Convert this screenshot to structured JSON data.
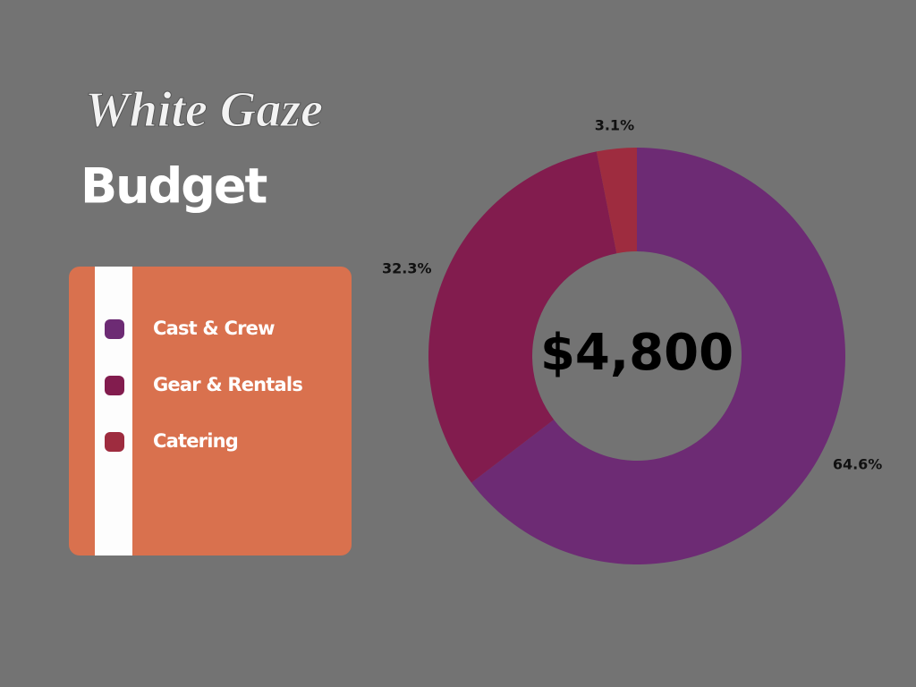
{
  "chart_data": {
    "type": "pie",
    "title": "White Gaze",
    "subtitle": "Budget",
    "center_label": "$4,800",
    "categories": [
      "Cast & Crew",
      "Gear & Rentals",
      "Catering"
    ],
    "values": [
      64.6,
      32.3,
      3.1
    ],
    "value_labels": [
      "64.6%",
      "32.3%",
      "3.1%"
    ],
    "colors": [
      "#6d2b74",
      "#821c4e",
      "#9e2c3f"
    ],
    "donut": true
  }
}
